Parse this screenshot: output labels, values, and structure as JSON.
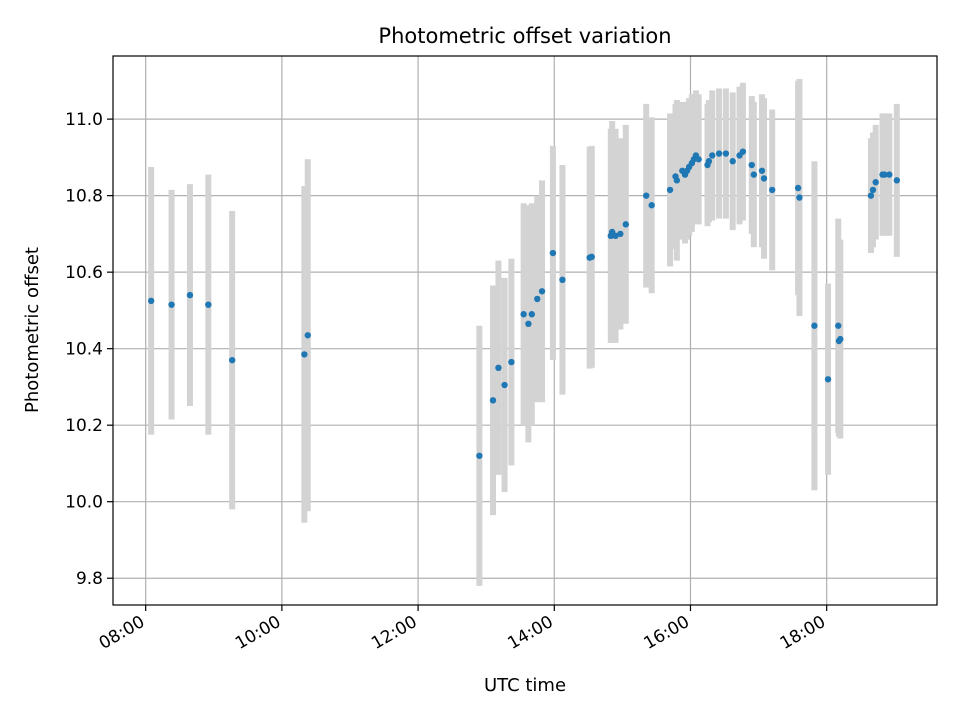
{
  "chart_data": {
    "type": "scatter",
    "title": "Photometric offset variation",
    "xlabel": "UTC time",
    "ylabel": "Photometric offset",
    "x_unit": "hours UTC",
    "xlim": [
      7.52,
      19.62
    ],
    "ylim": [
      9.73,
      11.165
    ],
    "xticks": [
      8,
      10,
      12,
      14,
      16,
      18
    ],
    "xtick_labels": [
      "08:00",
      "10:00",
      "12:00",
      "14:00",
      "16:00",
      "18:00"
    ],
    "yticks": [
      9.8,
      10.0,
      10.2,
      10.4,
      10.6,
      10.8,
      11.0
    ],
    "ytick_labels": [
      "9.8",
      "10.0",
      "10.2",
      "10.4",
      "10.6",
      "10.8",
      "11.0"
    ],
    "grid": true,
    "colors": {
      "marker": "#1f77b4",
      "errorbar": "#d3d3d3",
      "grid": "#b0b0b0"
    },
    "series": [
      {
        "x": [
          8.08,
          8.38,
          8.65,
          8.92,
          9.27,
          10.33,
          10.38,
          12.9,
          13.1,
          13.18,
          13.27,
          13.37,
          13.55,
          13.62,
          13.67,
          13.75,
          13.82,
          13.98,
          14.12,
          14.52,
          14.55,
          14.83,
          14.85,
          14.9,
          14.97,
          15.05,
          15.35,
          15.43,
          15.7,
          15.78,
          15.8,
          15.88,
          15.92,
          15.95,
          15.98,
          16.02,
          16.05,
          16.08,
          16.12,
          16.25,
          16.27,
          16.32,
          16.42,
          16.52,
          16.62,
          16.72,
          16.77,
          16.9,
          16.93,
          17.05,
          17.08,
          17.2,
          17.58,
          17.6,
          17.82,
          18.02,
          18.17,
          18.18,
          18.2,
          18.65,
          18.68,
          18.72,
          18.82,
          18.85,
          18.92,
          19.03
        ],
        "y": [
          10.525,
          10.515,
          10.54,
          10.515,
          10.37,
          10.385,
          10.435,
          10.12,
          10.265,
          10.35,
          10.305,
          10.365,
          10.49,
          10.465,
          10.49,
          10.53,
          10.55,
          10.65,
          10.58,
          10.638,
          10.64,
          10.695,
          10.705,
          10.695,
          10.7,
          10.725,
          10.8,
          10.775,
          10.815,
          10.85,
          10.84,
          10.865,
          10.855,
          10.865,
          10.875,
          10.885,
          10.895,
          10.905,
          10.895,
          10.88,
          10.89,
          10.905,
          10.91,
          10.91,
          10.89,
          10.905,
          10.915,
          10.88,
          10.855,
          10.865,
          10.845,
          10.815,
          10.82,
          10.795,
          10.46,
          10.32,
          10.46,
          10.42,
          10.425,
          10.8,
          10.815,
          10.835,
          10.855,
          10.855,
          10.855,
          10.84
        ],
        "yerr": [
          0.35,
          0.3,
          0.29,
          0.34,
          0.39,
          0.44,
          0.46,
          0.34,
          0.3,
          0.28,
          0.28,
          0.27,
          0.29,
          0.31,
          0.29,
          0.27,
          0.29,
          0.28,
          0.3,
          0.29,
          0.29,
          0.28,
          0.29,
          0.28,
          0.25,
          0.26,
          0.24,
          0.23,
          0.2,
          0.19,
          0.21,
          0.18,
          0.18,
          0.18,
          0.18,
          0.18,
          0.17,
          0.17,
          0.17,
          0.16,
          0.16,
          0.17,
          0.17,
          0.17,
          0.18,
          0.18,
          0.18,
          0.18,
          0.19,
          0.2,
          0.21,
          0.21,
          0.28,
          0.31,
          0.43,
          0.25,
          0.28,
          0.25,
          0.26,
          0.15,
          0.15,
          0.15,
          0.16,
          0.16,
          0.16,
          0.2
        ]
      }
    ]
  }
}
